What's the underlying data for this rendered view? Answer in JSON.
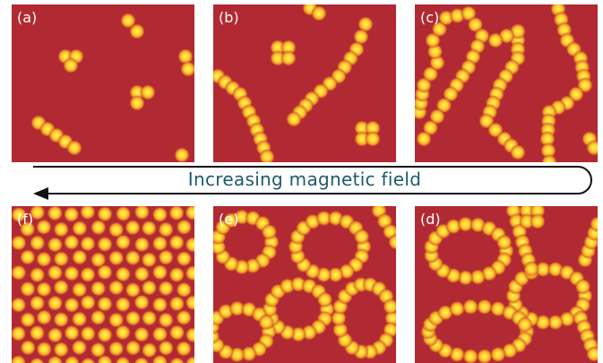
{
  "panels": [
    {
      "label": "(a)"
    },
    {
      "label": "(b)"
    },
    {
      "label": "(c)"
    },
    {
      "label": "(d)"
    },
    {
      "label": "(e)"
    },
    {
      "label": "(f)"
    }
  ],
  "arrow_label": "Increasing magnetic field"
}
